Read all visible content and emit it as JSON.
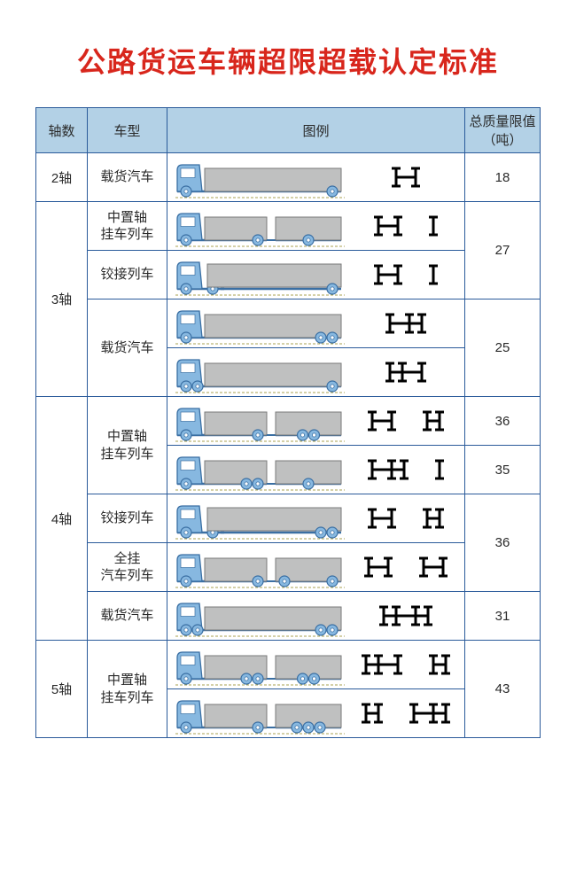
{
  "title": "公路货运车辆超限超载认定标准",
  "columns": [
    "轴数",
    "车型",
    "图例",
    "总质量限值（吨）"
  ],
  "colors": {
    "title": "#d8261c",
    "border": "#2a5a9a",
    "header_bg": "#b3d1e6",
    "truck_cab": "#87b8e0",
    "truck_cab_stroke": "#3a6fa3",
    "cargo_fill": "#bfc0c0",
    "wheel_fill": "#87b8e0",
    "ground": "#a8a050"
  },
  "groups": [
    {
      "axle": "2轴",
      "rows": [
        {
          "type": "载货汽车",
          "limit": "18",
          "truck": {
            "kind": "rigid",
            "rear_wheels": 1,
            "trailer": null
          },
          "diagram": {
            "groups": [
              [
                1
              ],
              [
                1
              ]
            ],
            "gap_after": []
          }
        }
      ]
    },
    {
      "axle": "3轴",
      "rows": [
        {
          "type": "中置轴\n挂车列车",
          "limit": "27",
          "limit_span": 2,
          "truck": {
            "kind": "rigid",
            "rear_wheels": 1,
            "trailer": "center1"
          },
          "diagram": {
            "groups": [
              [
                1
              ],
              [
                1
              ],
              [
                1
              ]
            ],
            "gap_after": [
              1
            ]
          }
        },
        {
          "type": "铰接列车",
          "truck": {
            "kind": "semi",
            "rear_wheels": 1,
            "trailer": "semi1"
          },
          "diagram": {
            "groups": [
              [
                1
              ],
              [
                1
              ],
              [
                1
              ]
            ],
            "gap_after": [
              1
            ]
          }
        },
        {
          "type": "载货汽车",
          "type_span": 2,
          "limit": "25",
          "limit_span": 2,
          "truck": {
            "kind": "rigid",
            "rear_wheels": 2,
            "trailer": null
          },
          "diagram": {
            "groups": [
              [
                1
              ],
              [
                1,
                1
              ]
            ],
            "gap_after": []
          }
        },
        {
          "truck": {
            "kind": "rigid",
            "front_wheels": 2,
            "rear_wheels": 1,
            "trailer": null
          },
          "diagram": {
            "groups": [
              [
                1,
                1
              ],
              [
                1
              ]
            ],
            "gap_after": []
          }
        }
      ]
    },
    {
      "axle": "4轴",
      "rows": [
        {
          "type": "中置轴\n挂车列车",
          "type_span": 2,
          "limit": "36",
          "truck": {
            "kind": "rigid",
            "rear_wheels": 1,
            "trailer": "center2"
          },
          "diagram": {
            "groups": [
              [
                1
              ],
              [
                1
              ],
              [
                1,
                1
              ]
            ],
            "gap_after": [
              1
            ]
          }
        },
        {
          "limit": "35",
          "truck": {
            "kind": "rigid",
            "rear_wheels": 2,
            "trailer": "center1"
          },
          "diagram": {
            "groups": [
              [
                1
              ],
              [
                1,
                1
              ],
              [
                1
              ]
            ],
            "gap_after": [
              1
            ]
          }
        },
        {
          "type": "铰接列车",
          "limit": "36",
          "limit_span": 2,
          "truck": {
            "kind": "semi",
            "rear_wheels": 1,
            "trailer": "semi2"
          },
          "diagram": {
            "groups": [
              [
                1
              ],
              [
                1
              ],
              [
                1,
                1
              ]
            ],
            "gap_after": [
              1
            ]
          }
        },
        {
          "type": "全挂\n汽车列车",
          "truck": {
            "kind": "rigid",
            "rear_wheels": 1,
            "trailer": "full2"
          },
          "diagram": {
            "groups": [
              [
                1
              ],
              [
                1
              ],
              [
                1
              ],
              [
                1
              ]
            ],
            "gap_after": [
              1
            ]
          }
        },
        {
          "type": "载货汽车",
          "limit": "31",
          "truck": {
            "kind": "rigid",
            "front_wheels": 2,
            "rear_wheels": 2,
            "trailer": null
          },
          "diagram": {
            "groups": [
              [
                1,
                1
              ],
              [
                1,
                1
              ]
            ],
            "gap_after": []
          }
        }
      ]
    },
    {
      "axle": "5轴",
      "rows": [
        {
          "type": "中置轴\n挂车列车",
          "type_span": 2,
          "limit": "43",
          "limit_span": 2,
          "truck": {
            "kind": "rigid",
            "rear_wheels": 2,
            "trailer": "center2"
          },
          "diagram": {
            "groups": [
              [
                1,
                1
              ],
              [
                1
              ],
              [
                1,
                1
              ]
            ],
            "gap_after": [
              1
            ]
          }
        },
        {
          "truck": {
            "kind": "rigid",
            "rear_wheels": 1,
            "trailer": "center3"
          },
          "diagram": {
            "groups": [
              [
                1,
                1
              ],
              [
                1
              ],
              [
                1,
                1
              ]
            ],
            "gap_after": [
              0
            ]
          }
        }
      ]
    }
  ]
}
